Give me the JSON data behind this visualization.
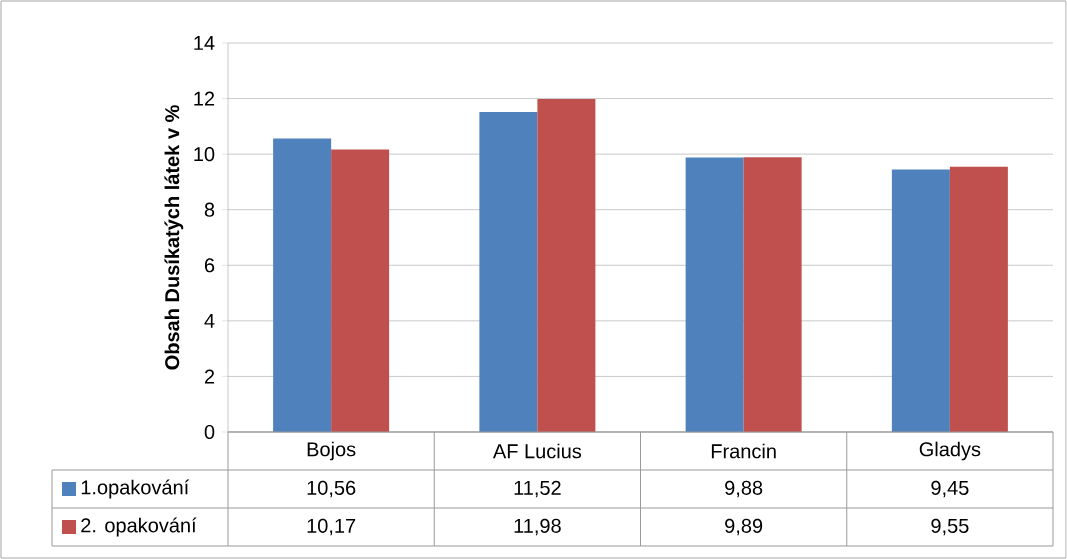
{
  "chart_data": {
    "type": "bar",
    "ylabel": "Obsah Dusíkatých látek v %",
    "categories": [
      "Bojos",
      "AF Lucius",
      "Francin",
      "Gladys"
    ],
    "series": [
      {
        "name": "1.opakování",
        "color": "#4f81bd",
        "values": [
          10.56,
          11.52,
          9.88,
          9.45
        ],
        "value_labels": [
          "10,56",
          "11,52",
          "9,88",
          "9,45"
        ]
      },
      {
        "name": "2. opakování",
        "color": "#c0504d",
        "values": [
          10.17,
          11.98,
          9.89,
          9.55
        ],
        "value_labels": [
          "10,17",
          "11,98",
          "9,89",
          "9,55"
        ]
      }
    ],
    "ylim": [
      0,
      14
    ],
    "yticks": [
      0,
      2,
      4,
      6,
      8,
      10,
      12,
      14
    ],
    "grid": "y",
    "legend": "bottom left"
  }
}
